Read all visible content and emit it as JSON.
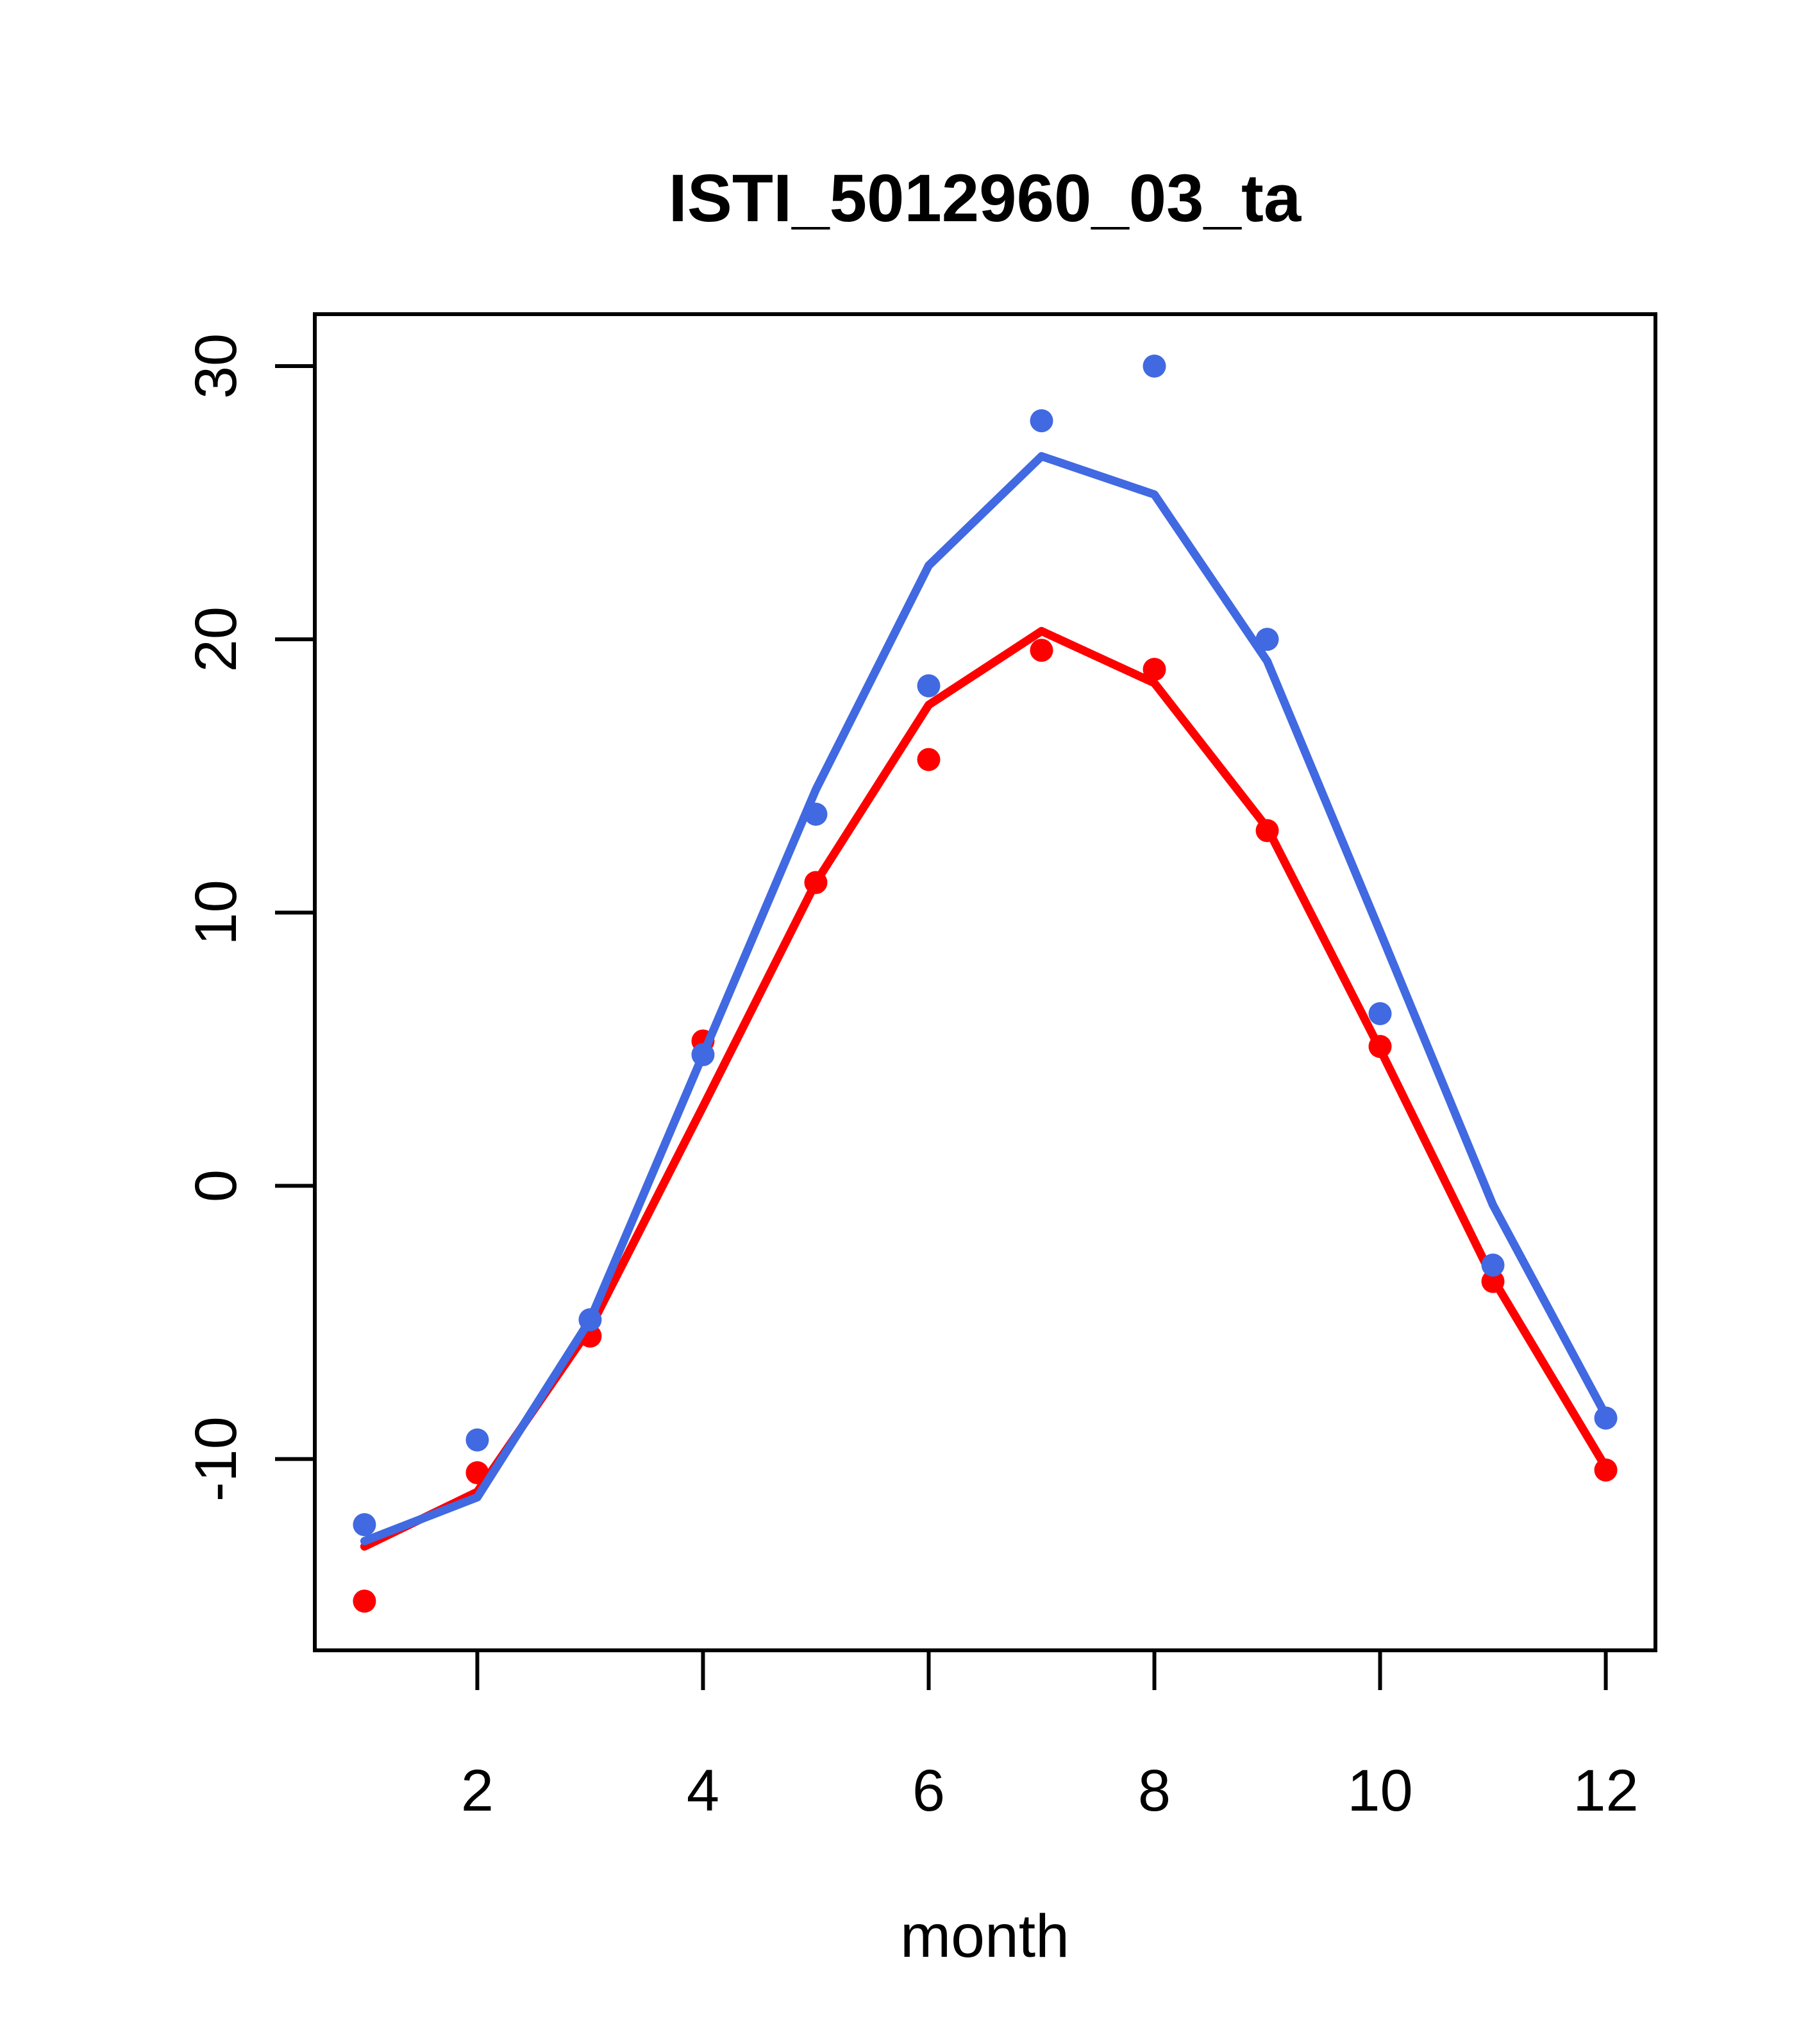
{
  "title": "ISTI_5012960_03_ta",
  "axes": {
    "xlabel": "month",
    "x_tick_labels": [
      "2",
      "4",
      "6",
      "8",
      "10",
      "12"
    ],
    "y_tick_labels": [
      "-10",
      "0",
      "10",
      "20",
      "30"
    ]
  },
  "colors": {
    "blue_series": "#4169E1",
    "red_series": "#FF0000",
    "frame": "#000000",
    "background": "#FFFFFF"
  },
  "chart_data": {
    "type": "line",
    "title": "ISTI_5012960_03_ta",
    "xlabel": "month",
    "ylabel": "",
    "x": [
      1,
      2,
      3,
      4,
      5,
      6,
      7,
      8,
      9,
      10,
      11,
      12
    ],
    "xticks": [
      2,
      4,
      6,
      8,
      10,
      12
    ],
    "yticks": [
      -10,
      0,
      10,
      20,
      30
    ],
    "xlim": [
      0.56,
      12.44
    ],
    "ylim": [
      -17,
      31.9
    ],
    "grid": false,
    "legend": null,
    "series": [
      {
        "name": "red-line",
        "type": "line",
        "color": "#FF0000",
        "values": [
          -13.2,
          -11.2,
          -5.2,
          2.9,
          11.1,
          17.6,
          20.3,
          18.4,
          13.1,
          5.0,
          -3.4,
          -10.3
        ]
      },
      {
        "name": "red-points",
        "type": "scatter",
        "color": "#FF0000",
        "values": [
          -15.2,
          -10.5,
          -5.5,
          5.3,
          11.1,
          15.6,
          19.6,
          18.9,
          13.0,
          5.1,
          -3.5,
          -10.4
        ]
      },
      {
        "name": "blue-line",
        "type": "line",
        "color": "#4169E1",
        "values": [
          -13.0,
          -11.4,
          -4.9,
          4.8,
          14.5,
          22.7,
          26.7,
          25.3,
          19.2,
          9.3,
          -0.7,
          -8.4
        ]
      },
      {
        "name": "blue-points",
        "type": "scatter",
        "color": "#4169E1",
        "values": [
          -12.4,
          -9.3,
          -4.9,
          4.8,
          13.6,
          18.3,
          28.0,
          30.0,
          20.0,
          6.3,
          -2.9,
          -8.5
        ]
      }
    ]
  }
}
